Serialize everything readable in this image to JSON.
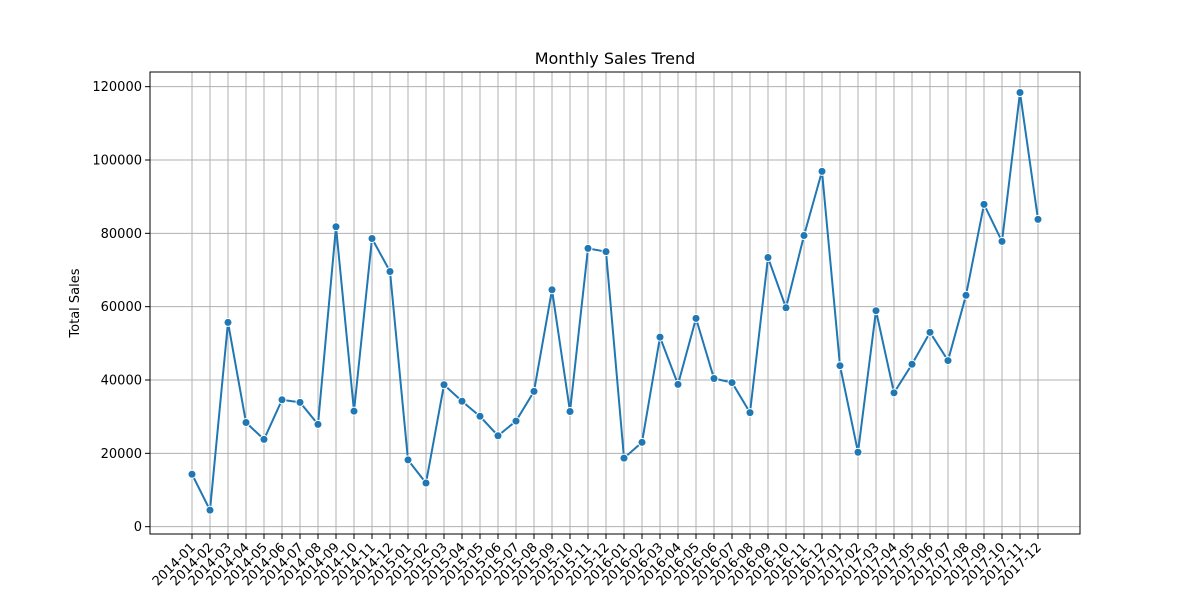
{
  "chart_data": {
    "type": "line",
    "title": "Monthly Sales Trend",
    "xlabel": "",
    "ylabel": "Total Sales",
    "ylim": [
      -2000,
      124000
    ],
    "yticks": [
      0,
      20000,
      40000,
      60000,
      80000,
      100000,
      120000
    ],
    "grid": true,
    "legend": "none",
    "color": "#1f77b4",
    "categories": [
      "2014-01",
      "2014-02",
      "2014-03",
      "2014-04",
      "2014-05",
      "2014-06",
      "2014-07",
      "2014-08",
      "2014-09",
      "2014-10",
      "2014-11",
      "2014-12",
      "2015-01",
      "2015-02",
      "2015-03",
      "2015-04",
      "2015-05",
      "2015-06",
      "2015-07",
      "2015-08",
      "2015-09",
      "2015-10",
      "2015-11",
      "2015-12",
      "2016-01",
      "2016-02",
      "2016-03",
      "2016-04",
      "2016-05",
      "2016-06",
      "2016-07",
      "2016-08",
      "2016-09",
      "2016-10",
      "2016-11",
      "2016-12",
      "2017-01",
      "2017-02",
      "2017-03",
      "2017-04",
      "2017-05",
      "2017-06",
      "2017-07",
      "2017-08",
      "2017-09",
      "2017-10",
      "2017-11",
      "2017-12"
    ],
    "series": [
      {
        "name": "Total Sales",
        "values": [
          14300,
          4500,
          55700,
          28400,
          23800,
          34600,
          33900,
          27900,
          81800,
          31500,
          78600,
          69600,
          18200,
          11900,
          38700,
          34200,
          30100,
          24800,
          28800,
          36900,
          64600,
          31400,
          75900,
          75000,
          18700,
          23000,
          51700,
          38800,
          56800,
          40400,
          39300,
          31100,
          73400,
          59700,
          79400,
          96900,
          43900,
          20300,
          58900,
          36500,
          44300,
          53000,
          45300,
          63100,
          87900,
          77800,
          118400,
          83800
        ]
      }
    ]
  }
}
